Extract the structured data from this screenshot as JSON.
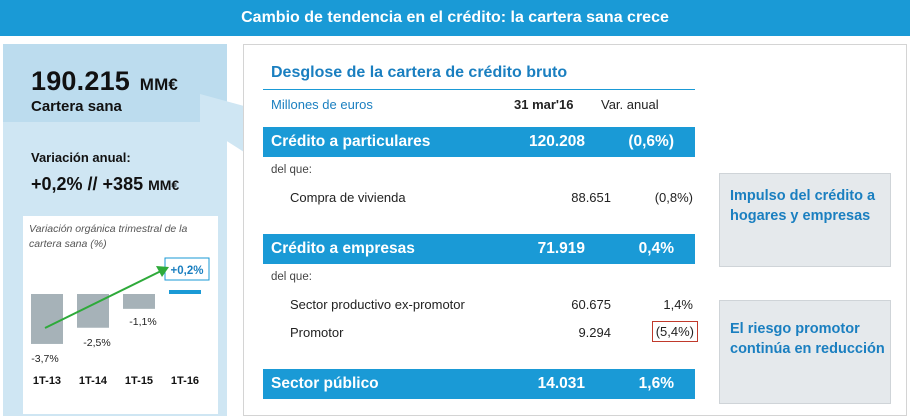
{
  "title": "Cambio de tendencia en el crédito: la cartera sana crece",
  "left_panel": {
    "value": "190.215",
    "unit": "MM€",
    "label": "Cartera sana",
    "variation_label": "Variación anual:",
    "variation_value": "+0,2% // +385",
    "variation_unit": "MM€"
  },
  "chart_data": {
    "type": "bar",
    "title": "Variación orgánica trimestral  de la cartera  sana (%)",
    "categories": [
      "1T-13",
      "1T-14",
      "1T-15",
      "1T-16"
    ],
    "values": [
      -3.7,
      -2.5,
      -1.1,
      0.2
    ],
    "value_labels": [
      "-3,7%",
      "-2,5%",
      "-1,1%",
      "+0,2%"
    ],
    "bar_color": "#a6b2b8",
    "highlight_color": "#1a9ad6",
    "arrow_color": "#2eaa3a",
    "ylim": [
      -4.2,
      0.5
    ]
  },
  "card": {
    "title": "Desglose de la cartera de crédito bruto",
    "units": "Millones de euros",
    "col_date": "31 mar'16",
    "col_var": "Var. anual",
    "bands": [
      {
        "label": "Crédito a particulares",
        "value": "120.208",
        "pct": "(0,6%)"
      },
      {
        "label": "Crédito a empresas",
        "value": "71.919",
        "pct": "0,4%"
      },
      {
        "label": "Sector público",
        "value": "14.031",
        "pct": "1,6%"
      }
    ],
    "del_que": "del que:",
    "rows": [
      {
        "label": "Compra de vivienda",
        "value": "88.651",
        "pct": "(0,8%)"
      },
      {
        "label": "Sector productivo ex-promotor",
        "value": "60.675",
        "pct": "1,4%"
      },
      {
        "label": "Promotor",
        "value": "9.294",
        "pct": "(5,4%)"
      }
    ]
  },
  "callouts": [
    {
      "text": "Impulso del crédito a hogares y empresas"
    },
    {
      "text": "El riesgo promotor continúa en reducción"
    }
  ],
  "colors": {
    "accent": "#1a9ad6",
    "accent_text": "#1a7fc0",
    "panel_bg": "#cfe6f3",
    "highlight_border": "#c0392b"
  }
}
